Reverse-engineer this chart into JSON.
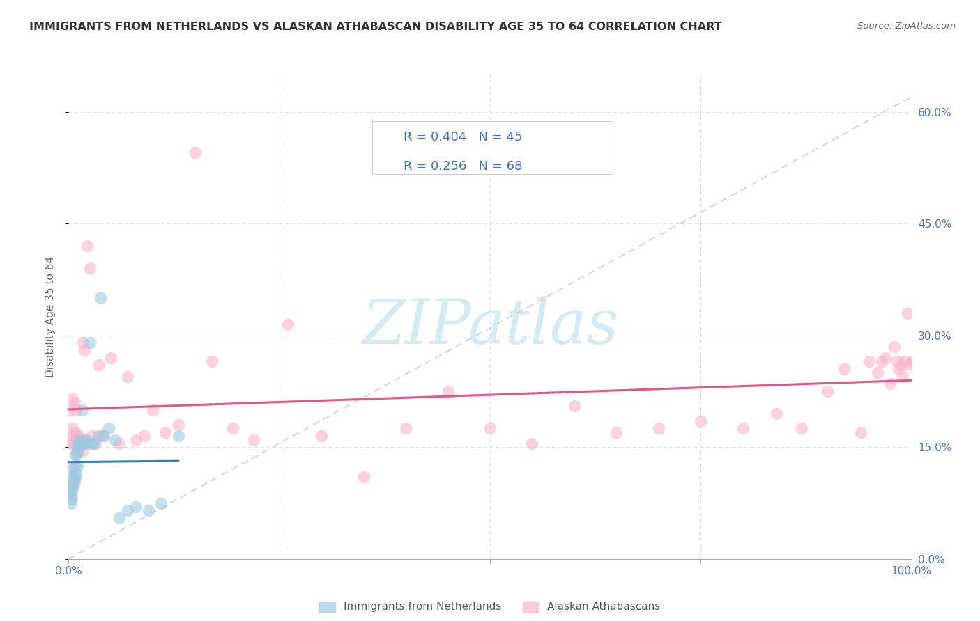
{
  "title": "IMMIGRANTS FROM NETHERLANDS VS ALASKAN ATHABASCAN DISABILITY AGE 35 TO 64 CORRELATION CHART",
  "source": "Source: ZipAtlas.com",
  "ylabel": "Disability Age 35 to 64",
  "xlim": [
    0.0,
    1.0
  ],
  "ylim": [
    0.0,
    0.65
  ],
  "xtick_positions": [
    0.0,
    0.25,
    0.5,
    0.75,
    1.0
  ],
  "xtick_labels": [
    "0.0%",
    "",
    "",
    "",
    "100.0%"
  ],
  "ytick_positions": [
    0.0,
    0.15,
    0.3,
    0.45,
    0.6
  ],
  "ytick_labels": [
    "0.0%",
    "15.0%",
    "30.0%",
    "45.0%",
    "60.0%"
  ],
  "color_blue": "#9ecae1",
  "color_pink": "#fbb4c9",
  "color_blue_line": "#3182bd",
  "color_pink_line": "#e8538a",
  "color_title": "#333333",
  "color_source": "#666666",
  "color_axis_right": "#4472c4",
  "color_ylabel": "#666666",
  "color_legend_text": "#4472c4",
  "color_bottom_legend": "#555555",
  "color_grid": "#dddddd",
  "color_diag": "#bbbbbb",
  "color_watermark": "#cce8f4",
  "watermark_text": "ZIPatlas",
  "legend_r1": "R = 0.404",
  "legend_n1": "N = 45",
  "legend_r2": "R = 0.256",
  "legend_n2": "N = 68",
  "blue_scatter_x": [
    0.001,
    0.002,
    0.002,
    0.003,
    0.003,
    0.003,
    0.004,
    0.004,
    0.004,
    0.005,
    0.005,
    0.005,
    0.006,
    0.006,
    0.007,
    0.007,
    0.007,
    0.008,
    0.008,
    0.009,
    0.009,
    0.01,
    0.01,
    0.011,
    0.012,
    0.013,
    0.014,
    0.016,
    0.018,
    0.02,
    0.022,
    0.025,
    0.028,
    0.03,
    0.035,
    0.038,
    0.042,
    0.048,
    0.055,
    0.06,
    0.07,
    0.08,
    0.095,
    0.11,
    0.13
  ],
  "blue_scatter_y": [
    0.09,
    0.095,
    0.1,
    0.075,
    0.085,
    0.095,
    0.08,
    0.09,
    0.1,
    0.095,
    0.105,
    0.12,
    0.1,
    0.11,
    0.105,
    0.115,
    0.125,
    0.11,
    0.14,
    0.115,
    0.14,
    0.125,
    0.15,
    0.145,
    0.155,
    0.16,
    0.155,
    0.2,
    0.155,
    0.16,
    0.155,
    0.29,
    0.155,
    0.155,
    0.165,
    0.35,
    0.165,
    0.175,
    0.16,
    0.055,
    0.065,
    0.07,
    0.065,
    0.075,
    0.165
  ],
  "pink_scatter_x": [
    0.002,
    0.003,
    0.004,
    0.005,
    0.005,
    0.006,
    0.007,
    0.007,
    0.008,
    0.009,
    0.01,
    0.011,
    0.012,
    0.013,
    0.015,
    0.016,
    0.017,
    0.019,
    0.02,
    0.022,
    0.025,
    0.028,
    0.032,
    0.036,
    0.04,
    0.05,
    0.06,
    0.07,
    0.08,
    0.09,
    0.1,
    0.115,
    0.13,
    0.15,
    0.17,
    0.195,
    0.22,
    0.26,
    0.3,
    0.35,
    0.4,
    0.45,
    0.5,
    0.55,
    0.6,
    0.65,
    0.7,
    0.75,
    0.8,
    0.84,
    0.87,
    0.9,
    0.92,
    0.94,
    0.95,
    0.96,
    0.965,
    0.97,
    0.975,
    0.98,
    0.983,
    0.985,
    0.987,
    0.99,
    0.992,
    0.995,
    0.998,
    1.0
  ],
  "pink_scatter_y": [
    0.2,
    0.155,
    0.165,
    0.175,
    0.215,
    0.155,
    0.165,
    0.21,
    0.17,
    0.2,
    0.16,
    0.145,
    0.165,
    0.15,
    0.16,
    0.145,
    0.29,
    0.28,
    0.16,
    0.42,
    0.39,
    0.165,
    0.155,
    0.26,
    0.165,
    0.27,
    0.155,
    0.245,
    0.16,
    0.165,
    0.2,
    0.17,
    0.18,
    0.545,
    0.265,
    0.175,
    0.16,
    0.315,
    0.165,
    0.11,
    0.175,
    0.225,
    0.175,
    0.155,
    0.205,
    0.17,
    0.175,
    0.185,
    0.175,
    0.195,
    0.175,
    0.225,
    0.255,
    0.17,
    0.265,
    0.25,
    0.265,
    0.27,
    0.235,
    0.285,
    0.265,
    0.255,
    0.26,
    0.245,
    0.265,
    0.33,
    0.26,
    0.265
  ]
}
